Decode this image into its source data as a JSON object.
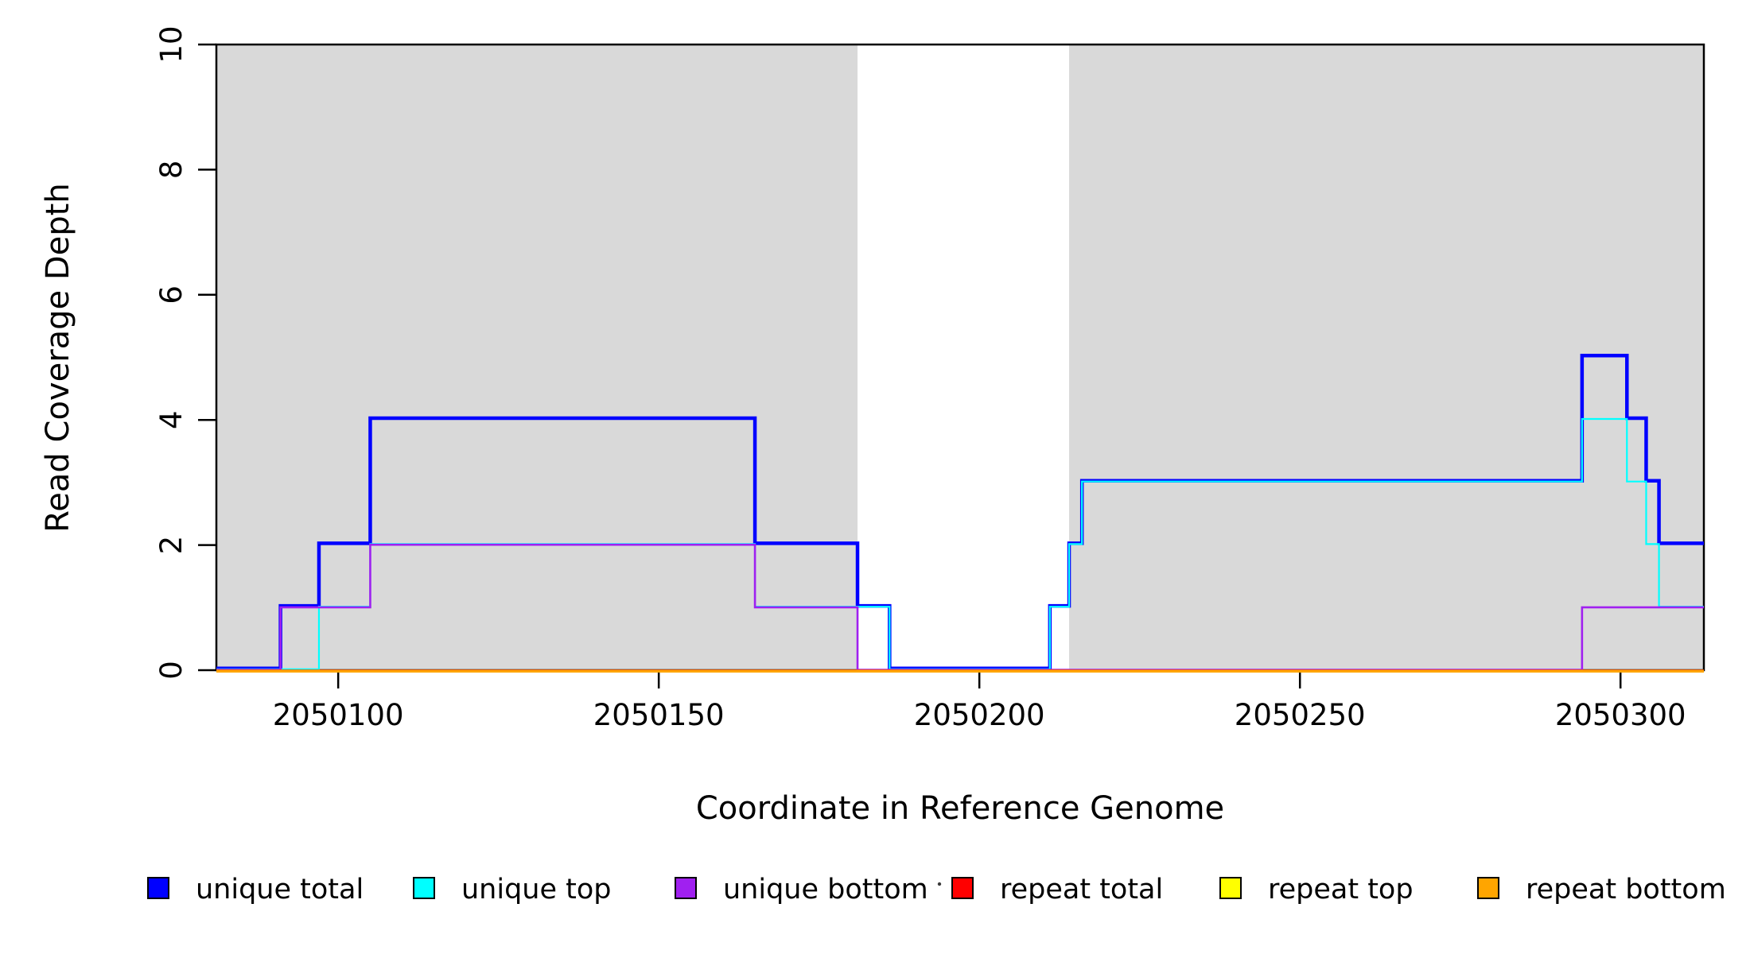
{
  "chart_data": {
    "type": "line",
    "subtype": "step",
    "title": "",
    "xlabel": "Coordinate in Reference Genome",
    "ylabel": "Read Coverage Depth",
    "xlim": [
      2050081,
      2050313
    ],
    "ylim": [
      0,
      10
    ],
    "x_ticks": [
      2050100,
      2050150,
      2050200,
      2050250,
      2050300
    ],
    "y_ticks": [
      0,
      2,
      4,
      6,
      8,
      10
    ],
    "grid": false,
    "legend_position": "bottom",
    "background_shading": {
      "color": "#d9d9d9",
      "note": "shaded uniquely-mappable regions",
      "regions": [
        [
          2050081,
          2050181
        ],
        [
          2050214,
          2050313
        ]
      ]
    },
    "series": [
      {
        "name": "unique total",
        "color": "#0000ff",
        "steps": [
          [
            2050081,
            0
          ],
          [
            2050091,
            1
          ],
          [
            2050097,
            2
          ],
          [
            2050105,
            4
          ],
          [
            2050165,
            2
          ],
          [
            2050181,
            1
          ],
          [
            2050186,
            0
          ],
          [
            2050211,
            1
          ],
          [
            2050214,
            2
          ],
          [
            2050216,
            3
          ],
          [
            2050294,
            5
          ],
          [
            2050301,
            4
          ],
          [
            2050304,
            3
          ],
          [
            2050306,
            2
          ]
        ]
      },
      {
        "name": "unique top",
        "color": "#00ffff",
        "steps": [
          [
            2050081,
            0
          ],
          [
            2050097,
            1
          ],
          [
            2050105,
            2
          ],
          [
            2050165,
            1
          ],
          [
            2050186,
            0
          ],
          [
            2050211,
            1
          ],
          [
            2050214,
            2
          ],
          [
            2050216,
            3
          ],
          [
            2050294,
            4
          ],
          [
            2050301,
            3
          ],
          [
            2050304,
            2
          ],
          [
            2050306,
            1
          ]
        ]
      },
      {
        "name": "unique bottom",
        "color": "#a020f0",
        "steps": [
          [
            2050081,
            0
          ],
          [
            2050091,
            1
          ],
          [
            2050105,
            2
          ],
          [
            2050165,
            1
          ],
          [
            2050181,
            0
          ],
          [
            2050294,
            1
          ]
        ]
      },
      {
        "name": "repeat total",
        "color": "#ff0000",
        "steps": [
          [
            2050081,
            0
          ]
        ]
      },
      {
        "name": "repeat top",
        "color": "#ffff00",
        "steps": [
          [
            2050081,
            0
          ]
        ]
      },
      {
        "name": "repeat bottom",
        "color": "#ffa500",
        "steps": [
          [
            2050081,
            0
          ]
        ]
      }
    ]
  }
}
